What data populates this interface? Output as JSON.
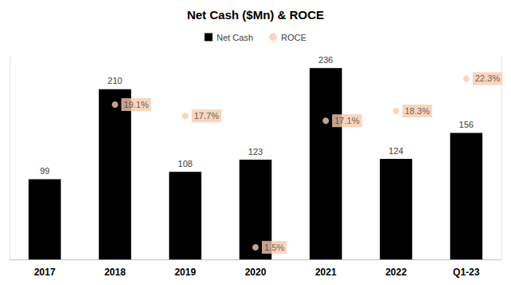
{
  "chart_data": {
    "type": "bar",
    "title": "Net Cash ($Mn) & ROCE",
    "categories": [
      "2017",
      "2018",
      "2019",
      "2020",
      "2021",
      "2022",
      "Q1-23"
    ],
    "series": [
      {
        "name": "Net Cash",
        "type": "bar",
        "color": "#000000",
        "values": [
          99,
          210,
          108,
          123,
          236,
          124,
          156
        ]
      },
      {
        "name": "ROCE",
        "type": "scatter",
        "marker": "circle",
        "color": "#f8cbad",
        "axis": "y2",
        "values": [
          null,
          19.1,
          17.7,
          1.5,
          17.1,
          18.3,
          22.3
        ],
        "value_labels": [
          null,
          "19.1%",
          "17.7%",
          "1.5%",
          "17.1%",
          "18.3%",
          "22.3%"
        ]
      }
    ],
    "ylim": [
      0,
      250
    ],
    "y2lim": [
      0,
      25
    ],
    "tick_labels": false,
    "grid": false,
    "legend": "top",
    "data_labels": true
  }
}
